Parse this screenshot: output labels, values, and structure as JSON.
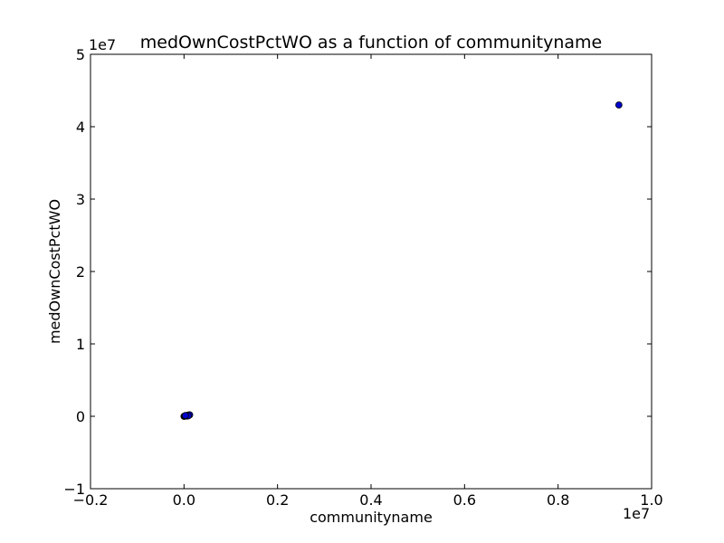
{
  "chart_data": {
    "type": "scatter",
    "title": "medOwnCostPctWO as a function of communityname",
    "xlabel": "communityname",
    "ylabel": "medOwnCostPctWO",
    "xlim": [
      -2000000,
      10000000
    ],
    "ylim": [
      -10000000,
      50000000
    ],
    "x_ticks": [
      -2000000,
      0,
      2000000,
      4000000,
      6000000,
      8000000,
      10000000
    ],
    "x_tick_labels": [
      "−0.2",
      "0.0",
      "0.2",
      "0.4",
      "0.6",
      "0.8",
      "1.0"
    ],
    "y_ticks": [
      -10000000,
      0,
      10000000,
      20000000,
      30000000,
      40000000,
      50000000
    ],
    "y_tick_labels": [
      "−1",
      "0",
      "1",
      "2",
      "3",
      "4",
      "5"
    ],
    "x_offset_label": "1e7",
    "y_offset_label": "1e7",
    "grid": false,
    "marker_color": "#0000cc",
    "marker_edge": "#000000",
    "points": [
      {
        "x": 0,
        "y": 0
      },
      {
        "x": 10000,
        "y": 20000
      },
      {
        "x": 25000,
        "y": 45000
      },
      {
        "x": 40000,
        "y": 60000
      },
      {
        "x": 55000,
        "y": 90000
      },
      {
        "x": 70000,
        "y": 110000
      },
      {
        "x": 85000,
        "y": 140000
      },
      {
        "x": 100000,
        "y": 160000
      },
      {
        "x": 110000,
        "y": 180000
      },
      {
        "x": 120000,
        "y": 200000
      },
      {
        "x": 60000,
        "y": 40000
      },
      {
        "x": 90000,
        "y": 70000
      },
      {
        "x": 30000,
        "y": 100000
      },
      {
        "x": 9300000,
        "y": 43000000
      }
    ]
  }
}
